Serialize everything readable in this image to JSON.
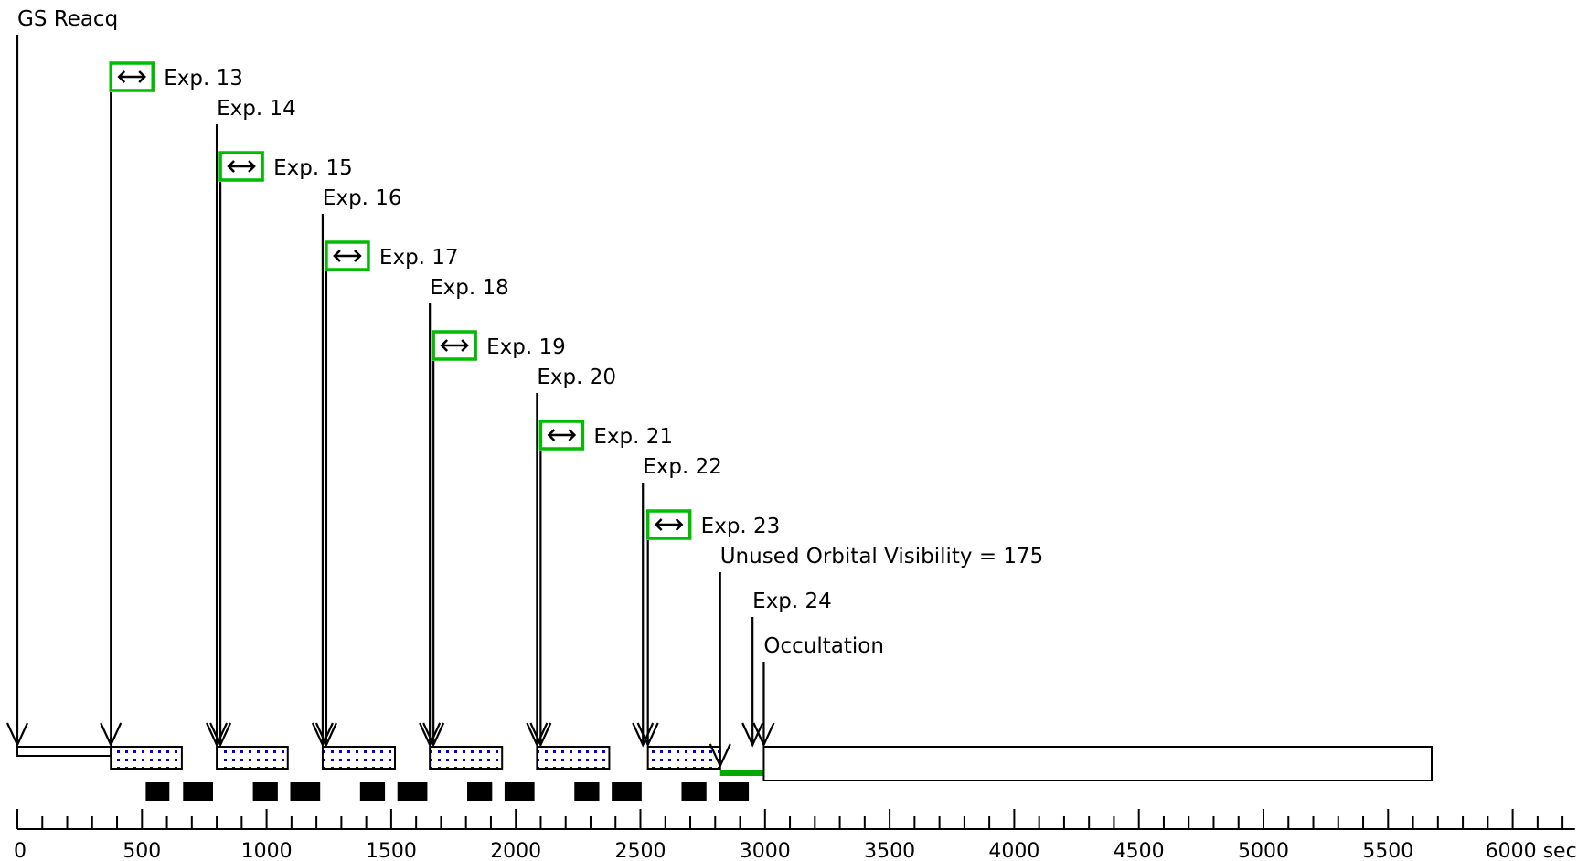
{
  "events": [
    {
      "id": "gs-reacq",
      "label": "GS Reacq",
      "time": 0
    },
    {
      "id": "exp-13",
      "label": "Exp. 13",
      "time": 375,
      "icon": "pan-arrows-icon"
    },
    {
      "id": "exp-14",
      "label": "Exp. 14",
      "time": 800
    },
    {
      "id": "exp-15",
      "label": "Exp. 15",
      "time": 800,
      "icon": "pan-arrows-icon"
    },
    {
      "id": "exp-16",
      "label": "Exp. 16",
      "time": 1225
    },
    {
      "id": "exp-17",
      "label": "Exp. 17",
      "time": 1225,
      "icon": "pan-arrows-icon"
    },
    {
      "id": "exp-18",
      "label": "Exp. 18",
      "time": 1655
    },
    {
      "id": "exp-19",
      "label": "Exp. 19",
      "time": 1655,
      "icon": "pan-arrows-icon"
    },
    {
      "id": "exp-20",
      "label": "Exp. 20",
      "time": 2085
    },
    {
      "id": "exp-21",
      "label": "Exp. 21",
      "time": 2085,
      "icon": "pan-arrows-icon"
    },
    {
      "id": "exp-22",
      "label": "Exp. 22",
      "time": 2510
    },
    {
      "id": "exp-23",
      "label": "Exp. 23",
      "time": 2530,
      "icon": "pan-arrows-icon"
    },
    {
      "id": "unused-orbital-visibility",
      "label": "Unused Orbital Visibility = 175",
      "time": 2820
    },
    {
      "id": "exp-24",
      "label": "Exp. 24",
      "time": 2950
    },
    {
      "id": "occultation",
      "label": "Occultation",
      "time": 2995
    }
  ],
  "segments": [
    {
      "kind": "guide-star",
      "start": 0,
      "end": 375
    },
    {
      "kind": "exposure",
      "start": 375,
      "end": 660
    },
    {
      "kind": "exposure",
      "start": 800,
      "end": 1085
    },
    {
      "kind": "exposure",
      "start": 1225,
      "end": 1515
    },
    {
      "kind": "exposure",
      "start": 1655,
      "end": 1945
    },
    {
      "kind": "exposure",
      "start": 2085,
      "end": 2375
    },
    {
      "kind": "exposure",
      "start": 2530,
      "end": 2820
    },
    {
      "kind": "unused",
      "start": 2820,
      "end": 2995
    },
    {
      "kind": "occultation",
      "start": 2995,
      "end": 5675
    }
  ],
  "overheads": [
    {
      "start": 515,
      "end": 610
    },
    {
      "start": 665,
      "end": 785
    },
    {
      "start": 945,
      "end": 1045
    },
    {
      "start": 1095,
      "end": 1215
    },
    {
      "start": 1375,
      "end": 1475
    },
    {
      "start": 1525,
      "end": 1645
    },
    {
      "start": 1805,
      "end": 1905
    },
    {
      "start": 1955,
      "end": 2075
    },
    {
      "start": 2235,
      "end": 2335
    },
    {
      "start": 2385,
      "end": 2505
    },
    {
      "start": 2665,
      "end": 2765
    },
    {
      "start": 2815,
      "end": 2935
    }
  ],
  "axis": {
    "min": 0,
    "max": 6250,
    "major_step": 500,
    "minor_step": 100,
    "tick_labels": [
      "0",
      "500",
      "1000",
      "1500",
      "2000",
      "2500",
      "3000",
      "3500",
      "4000",
      "4500",
      "5000",
      "5500",
      "6000 sec"
    ]
  },
  "colors": {
    "line": "#000000",
    "exposure_fill": "#ffffff",
    "exposure_dots": "#0000cc",
    "icon_border": "#00bb00",
    "unused_bar": "#00aa00",
    "overhead": "#000000"
  }
}
